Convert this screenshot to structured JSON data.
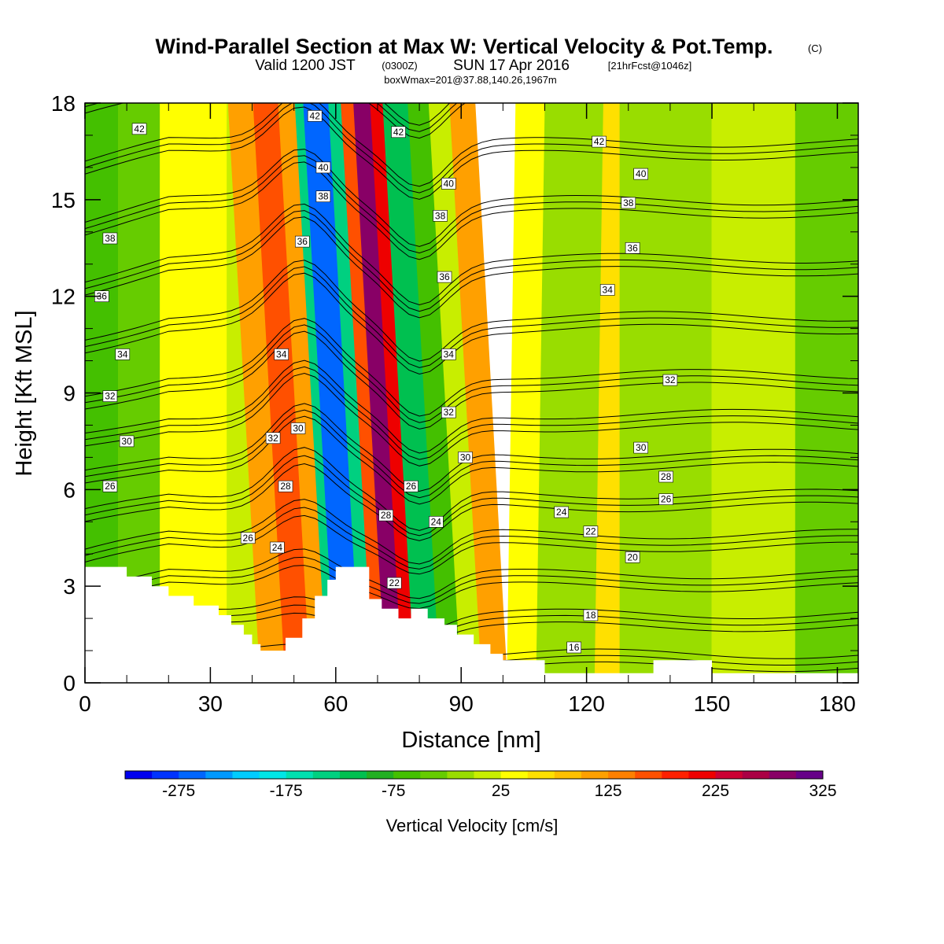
{
  "title": {
    "main": "Wind-Parallel Section at Max W: Vertical Velocity & Pot.Temp.",
    "main_suffix": "(C)",
    "valid_prefix": "Valid 1200 JST",
    "valid_utc": "(0300Z)",
    "valid_date": "SUN 17 Apr 2016",
    "fcst": "[21hrFcst@1046z]",
    "box": "boxWmax=201@37.88,140.26,1967m"
  },
  "chart_data": {
    "type": "heatmap",
    "xlabel": "Distance [nm]",
    "ylabel": "Height [Kft MSL]",
    "xlim": [
      0,
      185
    ],
    "ylim": [
      0,
      18
    ],
    "x_ticks": [
      "0",
      "30",
      "60",
      "90",
      "120",
      "150",
      "180"
    ],
    "y_ticks": [
      "0",
      "3",
      "6",
      "9",
      "12",
      "15",
      "18"
    ],
    "colorbar": {
      "title": "Vertical Velocity [cm/s]",
      "tick_labels": [
        "-275",
        "-175",
        "-75",
        "25",
        "125",
        "225",
        "325"
      ],
      "colors": [
        "#0000ee",
        "#0033ff",
        "#0066ff",
        "#0099ff",
        "#00ccff",
        "#00e6e6",
        "#00e0b0",
        "#00d080",
        "#00c050",
        "#22b022",
        "#44c000",
        "#66cc00",
        "#99dd00",
        "#c8ee00",
        "#ffff00",
        "#ffe000",
        "#ffc000",
        "#ffa000",
        "#ff8000",
        "#ff5000",
        "#ff2000",
        "#ee0000",
        "#cc0033",
        "#aa0044",
        "#880066",
        "#660088"
      ]
    },
    "vertical_velocity_bands": [
      {
        "x_start": 0,
        "x_end": 8,
        "value": -60
      },
      {
        "x_start": 8,
        "x_end": 18,
        "value": -30
      },
      {
        "x_start": 18,
        "x_end": 26,
        "value": 25
      },
      {
        "x_start": 26,
        "x_end": 34,
        "value": 40
      },
      {
        "x_start": 34,
        "x_end": 42,
        "value": 0
      },
      {
        "x_start": 42,
        "x_end": 48,
        "value": 110
      },
      {
        "x_start": 48,
        "x_end": 54,
        "value": 150
      },
      {
        "x_start": 54,
        "x_end": 58,
        "value": 110
      },
      {
        "x_start": 58,
        "x_end": 60,
        "value": -140
      },
      {
        "x_start": 60,
        "x_end": 66,
        "value": -275
      },
      {
        "x_start": 66,
        "x_end": 69,
        "value": -150
      },
      {
        "x_start": 69,
        "x_end": 72,
        "value": 150
      },
      {
        "x_start": 72,
        "x_end": 76,
        "value": 290
      },
      {
        "x_start": 76,
        "x_end": 79,
        "value": 200
      },
      {
        "x_start": 79,
        "x_end": 85,
        "value": -110
      },
      {
        "x_start": 85,
        "x_end": 90,
        "value": -60
      },
      {
        "x_start": 90,
        "x_end": 95,
        "value": 0
      },
      {
        "x_start": 95,
        "x_end": 101,
        "value": 110
      },
      {
        "x_start": 101,
        "x_end": 108,
        "value": 35
      },
      {
        "x_start": 108,
        "x_end": 122,
        "value": -25
      },
      {
        "x_start": 122,
        "x_end": 128,
        "value": 50
      },
      {
        "x_start": 128,
        "x_end": 150,
        "value": -10
      },
      {
        "x_start": 150,
        "x_end": 170,
        "value": 5
      },
      {
        "x_start": 170,
        "x_end": 185,
        "value": -45
      }
    ],
    "terrain_kft": [
      [
        0,
        3.6
      ],
      [
        10,
        3.6
      ],
      [
        10,
        3.3
      ],
      [
        16,
        3.3
      ],
      [
        16,
        3.0
      ],
      [
        20,
        3.0
      ],
      [
        20,
        2.7
      ],
      [
        26,
        2.7
      ],
      [
        26,
        2.4
      ],
      [
        32,
        2.4
      ],
      [
        32,
        2.1
      ],
      [
        35,
        2.1
      ],
      [
        35,
        1.8
      ],
      [
        38,
        1.8
      ],
      [
        38,
        1.5
      ],
      [
        40,
        1.5
      ],
      [
        40,
        1.2
      ],
      [
        42,
        1.2
      ],
      [
        42,
        1.0
      ],
      [
        48,
        1.0
      ],
      [
        48,
        1.4
      ],
      [
        52,
        1.4
      ],
      [
        52,
        2.0
      ],
      [
        55,
        2.0
      ],
      [
        55,
        2.7
      ],
      [
        58,
        2.7
      ],
      [
        58,
        3.2
      ],
      [
        60,
        3.2
      ],
      [
        60,
        3.6
      ],
      [
        68,
        3.6
      ],
      [
        68,
        2.6
      ],
      [
        71,
        2.6
      ],
      [
        71,
        2.3
      ],
      [
        75,
        2.3
      ],
      [
        75,
        2.0
      ],
      [
        78,
        2.0
      ],
      [
        78,
        2.3
      ],
      [
        82,
        2.3
      ],
      [
        82,
        2.0
      ],
      [
        86,
        2.0
      ],
      [
        86,
        1.8
      ],
      [
        89,
        1.8
      ],
      [
        89,
        1.5
      ],
      [
        93,
        1.5
      ],
      [
        93,
        1.2
      ],
      [
        97,
        1.2
      ],
      [
        97,
        0.9
      ],
      [
        100,
        0.9
      ],
      [
        100,
        0.7
      ],
      [
        110,
        0.7
      ],
      [
        110,
        0.3
      ],
      [
        118,
        0.3
      ],
      [
        118,
        0.3
      ],
      [
        136,
        0.3
      ],
      [
        136,
        0.7
      ],
      [
        150,
        0.7
      ],
      [
        150,
        0.3
      ],
      [
        185,
        0.3
      ]
    ],
    "potential_temperature_contour_labels": [
      {
        "x": 13,
        "y": 17.2,
        "label": "42"
      },
      {
        "x": 55,
        "y": 17.6,
        "label": "42"
      },
      {
        "x": 75,
        "y": 17.1,
        "label": "42"
      },
      {
        "x": 123,
        "y": 16.8,
        "label": "42"
      },
      {
        "x": 57,
        "y": 16.0,
        "label": "40"
      },
      {
        "x": 87,
        "y": 15.5,
        "label": "40"
      },
      {
        "x": 133,
        "y": 15.8,
        "label": "40"
      },
      {
        "x": 57,
        "y": 15.1,
        "label": "38"
      },
      {
        "x": 85,
        "y": 14.5,
        "label": "38"
      },
      {
        "x": 130,
        "y": 14.9,
        "label": "38"
      },
      {
        "x": 6,
        "y": 13.8,
        "label": "38"
      },
      {
        "x": 52,
        "y": 13.7,
        "label": "36"
      },
      {
        "x": 86,
        "y": 12.6,
        "label": "36"
      },
      {
        "x": 131,
        "y": 13.5,
        "label": "36"
      },
      {
        "x": 4,
        "y": 12.0,
        "label": "36"
      },
      {
        "x": 125,
        "y": 12.2,
        "label": "34"
      },
      {
        "x": 9,
        "y": 10.2,
        "label": "34"
      },
      {
        "x": 47,
        "y": 10.2,
        "label": "34"
      },
      {
        "x": 87,
        "y": 10.2,
        "label": "34"
      },
      {
        "x": 6,
        "y": 8.9,
        "label": "32"
      },
      {
        "x": 140,
        "y": 9.4,
        "label": "32"
      },
      {
        "x": 87,
        "y": 8.4,
        "label": "32"
      },
      {
        "x": 45,
        "y": 7.6,
        "label": "32"
      },
      {
        "x": 51,
        "y": 7.9,
        "label": "30"
      },
      {
        "x": 10,
        "y": 7.5,
        "label": "30"
      },
      {
        "x": 91,
        "y": 7.0,
        "label": "30"
      },
      {
        "x": 133,
        "y": 7.3,
        "label": "30"
      },
      {
        "x": 139,
        "y": 6.4,
        "label": "28"
      },
      {
        "x": 48,
        "y": 6.1,
        "label": "28"
      },
      {
        "x": 72,
        "y": 5.2,
        "label": "28"
      },
      {
        "x": 6,
        "y": 6.1,
        "label": "26"
      },
      {
        "x": 78,
        "y": 6.1,
        "label": "26"
      },
      {
        "x": 139,
        "y": 5.7,
        "label": "26"
      },
      {
        "x": 39,
        "y": 4.5,
        "label": "26"
      },
      {
        "x": 114,
        "y": 5.3,
        "label": "24"
      },
      {
        "x": 84,
        "y": 5.0,
        "label": "24"
      },
      {
        "x": 46,
        "y": 4.2,
        "label": "24"
      },
      {
        "x": 121,
        "y": 4.7,
        "label": "22"
      },
      {
        "x": 74,
        "y": 3.1,
        "label": "22"
      },
      {
        "x": 131,
        "y": 3.9,
        "label": "20"
      },
      {
        "x": 121,
        "y": 2.1,
        "label": "18"
      },
      {
        "x": 117,
        "y": 1.1,
        "label": "16"
      }
    ]
  }
}
